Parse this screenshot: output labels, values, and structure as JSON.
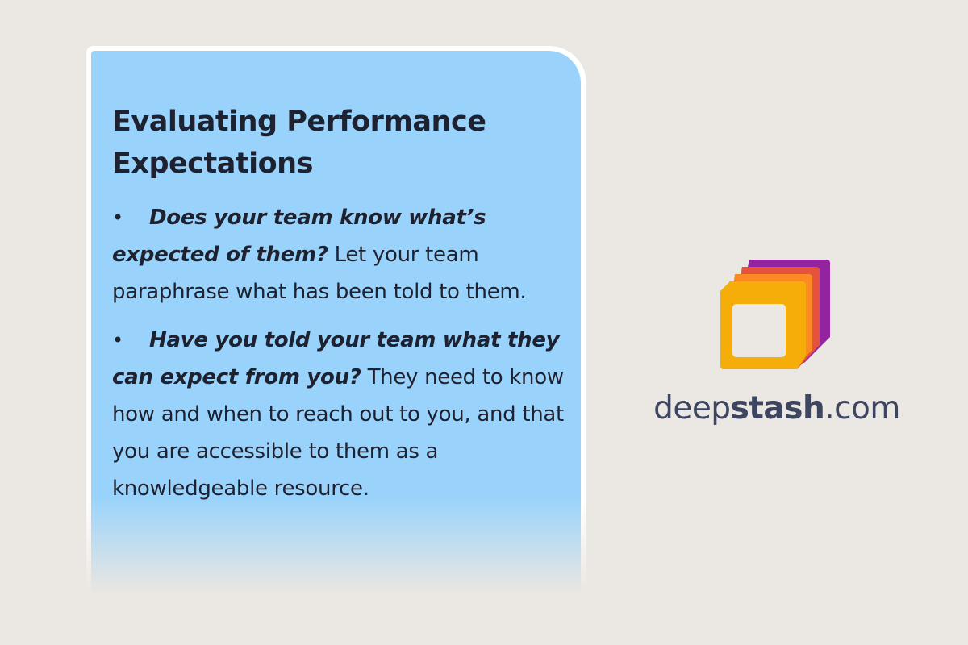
{
  "card": {
    "title": "Evaluating Performance Expectations",
    "bullets": [
      {
        "bold": "Does your team know what’s expected of them?",
        "text": " Let your team paraphrase what has been told to them."
      },
      {
        "bold": "Have you told your team what they can expect from you?",
        "text": " They need to know how and when to reach out to you, and that you are accessible to them as a knowledgeable resource."
      }
    ],
    "bullet_glyph": "•"
  },
  "brand": {
    "prefix": "deep",
    "bold": "stash",
    "suffix": ".com",
    "logo_colors": [
      "#f5ad0a",
      "#fb8a25",
      "#e5533d",
      "#93239f"
    ]
  }
}
